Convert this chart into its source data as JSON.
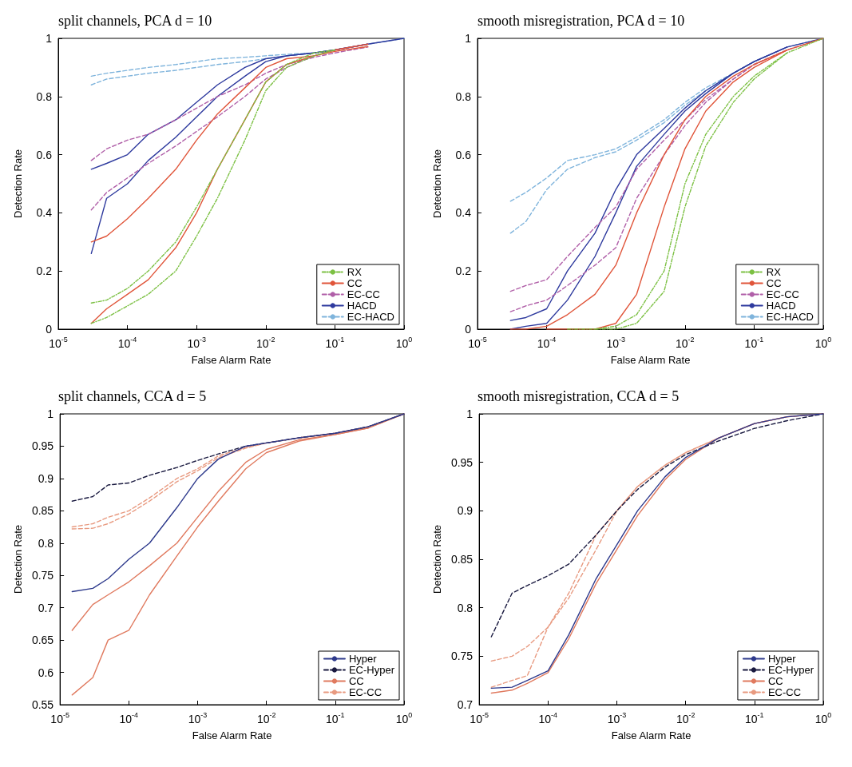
{
  "chart_data": [
    {
      "type": "line",
      "title": "split channels, PCA d = 10",
      "xlabel": "False Alarm Rate",
      "ylabel": "Detection Rate",
      "log": "x",
      "marker": "none",
      "legend": "bottom right",
      "x": [
        3e-05,
        5e-05,
        0.0001,
        0.0002,
        0.0005,
        0.001,
        0.002,
        0.005,
        0.01,
        0.02,
        0.05,
        0.1,
        0.3,
        1
      ],
      "xlim": [
        1e-05,
        1
      ],
      "xticks": [
        {
          "value": 1e-05,
          "label": "10$^{-5}$"
        },
        {
          "value": 0.0001,
          "label": "10$^{-4}$"
        },
        {
          "value": 0.001,
          "label": "10$^{-3}$"
        },
        {
          "value": 0.01,
          "label": "10$^{-2}$"
        },
        {
          "value": 0.1,
          "label": "10$^{-1}$"
        },
        {
          "value": 1,
          "label": "10$^{0}$"
        }
      ],
      "ylim": [
        0,
        1
      ],
      "yticks": [
        0,
        0.2,
        0.4,
        0.6,
        0.8,
        1
      ],
      "series": [
        {
          "name": "RX",
          "color": "#7cc043",
          "line_style": "dashdot",
          "values": [
            0.09,
            0.1,
            0.14,
            0.2,
            0.3,
            0.42,
            0.55,
            0.72,
            0.85,
            0.91,
            0.95,
            0.96,
            null,
            null
          ]
        },
        {
          "color": "#7cc043",
          "line_style": "dashdot",
          "values": [
            0.02,
            0.04,
            0.08,
            0.12,
            0.2,
            0.32,
            0.45,
            0.65,
            0.82,
            0.9,
            0.94,
            0.96,
            null,
            null
          ]
        },
        {
          "name": "CC",
          "color": "#e0553a",
          "line_style": "solid",
          "values": [
            0.3,
            0.32,
            0.38,
            0.45,
            0.55,
            0.65,
            0.74,
            0.83,
            0.9,
            0.93,
            0.94,
            0.955,
            0.972,
            null
          ]
        },
        {
          "color": "#e0553a",
          "line_style": "solid",
          "values": [
            0.02,
            0.07,
            0.12,
            0.17,
            0.28,
            0.4,
            0.55,
            0.72,
            0.85,
            0.91,
            0.94,
            0.96,
            0.98,
            null
          ]
        },
        {
          "name": "EC-CC",
          "color": "#b05fa8",
          "line_style": "dashed",
          "values": [
            0.58,
            0.62,
            0.65,
            0.67,
            0.72,
            0.76,
            0.8,
            0.84,
            0.88,
            0.91,
            0.935,
            0.95,
            0.97,
            null
          ]
        },
        {
          "color": "#b05fa8",
          "line_style": "dashed",
          "values": [
            0.41,
            0.47,
            0.52,
            0.57,
            0.63,
            0.68,
            0.73,
            0.8,
            0.86,
            0.9,
            0.94,
            0.96,
            0.98,
            null
          ]
        },
        {
          "name": "HACD",
          "color": "#2e3a9e",
          "line_style": "solid",
          "values": [
            0.55,
            0.57,
            0.6,
            0.67,
            0.72,
            0.78,
            0.84,
            0.9,
            0.93,
            0.94,
            0.95,
            0.96,
            0.98,
            1
          ]
        },
        {
          "color": "#2e3a9e",
          "line_style": "solid",
          "values": [
            0.26,
            0.45,
            0.5,
            0.58,
            0.66,
            0.73,
            0.8,
            0.87,
            0.92,
            0.94,
            0.95,
            0.96,
            0.98,
            null
          ]
        },
        {
          "name": "EC-HACD",
          "color": "#7fb4dc",
          "line_style": "dashed",
          "values": [
            0.87,
            0.88,
            0.89,
            0.9,
            0.91,
            0.92,
            0.93,
            0.935,
            0.94,
            0.945,
            0.95,
            0.96,
            0.98,
            1
          ]
        },
        {
          "color": "#7fb4dc",
          "line_style": "dashed",
          "values": [
            0.84,
            0.86,
            0.87,
            0.88,
            0.89,
            0.9,
            0.91,
            0.92,
            0.93,
            0.94,
            0.95,
            0.96,
            0.98,
            null
          ]
        }
      ]
    },
    {
      "type": "line",
      "title": "smooth misregistration, PCA d = 10",
      "xlabel": "False Alarm Rate",
      "ylabel": "Detection Rate",
      "log": "x",
      "marker": "none",
      "legend": "bottom right",
      "x": [
        3e-05,
        5e-05,
        0.0001,
        0.0002,
        0.0005,
        0.001,
        0.002,
        0.005,
        0.01,
        0.02,
        0.05,
        0.1,
        0.3,
        1
      ],
      "xlim": [
        1e-05,
        1
      ],
      "xticks": [
        {
          "value": 1e-05,
          "label": "10$^{-5}$"
        },
        {
          "value": 0.0001,
          "label": "10$^{-4}$"
        },
        {
          "value": 0.001,
          "label": "10$^{-3}$"
        },
        {
          "value": 0.01,
          "label": "10$^{-2}$"
        },
        {
          "value": 0.1,
          "label": "10$^{-1}$"
        },
        {
          "value": 1,
          "label": "10$^{0}$"
        }
      ],
      "ylim": [
        0,
        1
      ],
      "yticks": [
        0,
        0.2,
        0.4,
        0.6,
        0.8,
        1
      ],
      "series": [
        {
          "name": "RX",
          "color": "#7cc043",
          "line_style": "dashdot",
          "values": [
            null,
            null,
            null,
            0,
            0,
            0.01,
            0.05,
            0.2,
            0.5,
            0.67,
            0.8,
            0.87,
            0.95,
            1
          ]
        },
        {
          "color": "#7cc043",
          "line_style": "dashdot",
          "values": [
            null,
            null,
            null,
            null,
            0,
            0,
            0.02,
            0.13,
            0.42,
            0.63,
            0.78,
            0.86,
            0.95,
            null
          ]
        },
        {
          "name": "CC",
          "color": "#e0553a",
          "line_style": "solid",
          "values": [
            0,
            0,
            0.01,
            0.05,
            0.12,
            0.22,
            0.4,
            0.6,
            0.72,
            0.8,
            0.87,
            0.91,
            0.96,
            1
          ]
        },
        {
          "color": "#e0553a",
          "line_style": "solid",
          "values": [
            null,
            null,
            0,
            0,
            0,
            0.02,
            0.12,
            0.42,
            0.62,
            0.75,
            0.85,
            0.9,
            0.96,
            null
          ]
        },
        {
          "name": "EC-CC",
          "color": "#b05fa8",
          "line_style": "dashed",
          "values": [
            0.13,
            0.15,
            0.17,
            0.25,
            0.35,
            0.42,
            0.55,
            0.65,
            0.72,
            0.79,
            0.86,
            0.91,
            0.96,
            1
          ]
        },
        {
          "color": "#b05fa8",
          "line_style": "dashed",
          "values": [
            0.06,
            0.08,
            0.1,
            0.15,
            0.22,
            0.28,
            0.45,
            0.6,
            0.7,
            0.78,
            0.86,
            0.91,
            0.96,
            null
          ]
        },
        {
          "name": "HACD",
          "color": "#2e3a9e",
          "line_style": "solid",
          "values": [
            0.03,
            0.04,
            0.07,
            0.2,
            0.33,
            0.48,
            0.6,
            0.69,
            0.76,
            0.82,
            0.88,
            0.92,
            0.97,
            1
          ]
        },
        {
          "color": "#2e3a9e",
          "line_style": "solid",
          "values": [
            0,
            0.01,
            0.02,
            0.1,
            0.25,
            0.4,
            0.56,
            0.67,
            0.75,
            0.81,
            0.88,
            0.92,
            0.97,
            null
          ]
        },
        {
          "name": "EC-HACD",
          "color": "#7fb4dc",
          "line_style": "dashed",
          "values": [
            0.44,
            0.47,
            0.52,
            0.58,
            0.6,
            0.62,
            0.66,
            0.72,
            0.78,
            0.83,
            0.88,
            0.92,
            0.97,
            1
          ]
        },
        {
          "color": "#7fb4dc",
          "line_style": "dashed",
          "values": [
            0.33,
            0.37,
            0.48,
            0.55,
            0.59,
            0.61,
            0.65,
            0.71,
            0.77,
            0.82,
            0.88,
            0.92,
            0.97,
            null
          ]
        }
      ]
    },
    {
      "type": "line",
      "title": "split channels, CCA d = 5",
      "xlabel": "False Alarm Rate",
      "ylabel": "Detection Rate",
      "log": "x",
      "marker": "none",
      "legend": "bottom right",
      "x": [
        1.5e-05,
        3e-05,
        5e-05,
        0.0001,
        0.0002,
        0.0005,
        0.001,
        0.002,
        0.005,
        0.01,
        0.03,
        0.1,
        0.3,
        1
      ],
      "xlim": [
        1e-05,
        1
      ],
      "xticks": [
        {
          "value": 1e-05,
          "label": "10$^{-5}$"
        },
        {
          "value": 0.0001,
          "label": "10$^{-4}$"
        },
        {
          "value": 0.001,
          "label": "10$^{-3}$"
        },
        {
          "value": 0.01,
          "label": "10$^{-2}$"
        },
        {
          "value": 0.1,
          "label": "10$^{-1}$"
        },
        {
          "value": 1,
          "label": "10$^{0}$"
        }
      ],
      "ylim": [
        0.55,
        1
      ],
      "yticks": [
        0.55,
        0.6,
        0.65,
        0.7,
        0.75,
        0.8,
        0.85,
        0.9,
        0.95,
        1
      ],
      "series": [
        {
          "name": "Hyper",
          "color": "#2e3a8c",
          "line_style": "solid",
          "values": [
            0.725,
            0.73,
            0.745,
            0.775,
            0.8,
            0.855,
            0.9,
            0.93,
            0.95,
            0.955,
            0.963,
            0.97,
            0.98,
            1
          ]
        },
        {
          "name": "EC-Hyper",
          "color": "#1a1a40",
          "line_style": "dashed",
          "values": [
            0.865,
            0.872,
            0.89,
            0.893,
            0.905,
            0.917,
            0.928,
            0.938,
            0.95,
            0.955,
            0.963,
            0.97,
            0.98,
            1
          ]
        },
        {
          "name": "CC",
          "color": "#e07a5f",
          "line_style": "solid",
          "values": [
            0.665,
            0.705,
            0.72,
            0.74,
            0.765,
            0.8,
            0.84,
            0.88,
            0.925,
            0.945,
            0.96,
            0.968,
            0.978,
            1
          ]
        },
        {
          "color": "#e07a5f",
          "line_style": "solid",
          "values": [
            0.565,
            0.592,
            0.65,
            0.665,
            0.72,
            0.78,
            0.825,
            0.865,
            0.915,
            0.94,
            0.958,
            0.968,
            0.978,
            null
          ]
        },
        {
          "name": "EC-CC",
          "color": "#e89a80",
          "line_style": "dashed",
          "values": [
            0.825,
            0.83,
            0.84,
            0.85,
            0.87,
            0.9,
            0.915,
            0.935,
            0.948,
            0.955,
            0.963,
            0.97,
            0.98,
            1
          ]
        },
        {
          "color": "#e89a80",
          "line_style": "dashed",
          "values": [
            0.822,
            0.823,
            0.83,
            0.845,
            0.865,
            0.895,
            0.912,
            0.932,
            0.947,
            0.955,
            0.963,
            0.97,
            0.98,
            null
          ]
        }
      ]
    },
    {
      "type": "line",
      "title": "smooth misregistration, CCA d = 5",
      "xlabel": "False Alarm Rate",
      "ylabel": "Detection Rate",
      "log": "x",
      "marker": "none",
      "legend": "bottom right",
      "x": [
        1.5e-05,
        3e-05,
        5e-05,
        0.0001,
        0.0002,
        0.0005,
        0.001,
        0.002,
        0.005,
        0.01,
        0.03,
        0.1,
        0.3,
        1
      ],
      "xlim": [
        1e-05,
        1
      ],
      "xticks": [
        {
          "value": 1e-05,
          "label": "10$^{-5}$"
        },
        {
          "value": 0.0001,
          "label": "10$^{-4}$"
        },
        {
          "value": 0.001,
          "label": "10$^{-3}$"
        },
        {
          "value": 0.01,
          "label": "10$^{-2}$"
        },
        {
          "value": 0.1,
          "label": "10$^{-1}$"
        },
        {
          "value": 1,
          "label": "10$^{0}$"
        }
      ],
      "ylim": [
        0.7,
        1
      ],
      "yticks": [
        0.7,
        0.75,
        0.8,
        0.85,
        0.9,
        0.95,
        1
      ],
      "series": [
        {
          "name": "Hyper",
          "color": "#2e3a8c",
          "line_style": "solid",
          "values": [
            0.717,
            0.718,
            0.725,
            0.735,
            0.772,
            0.83,
            0.865,
            0.9,
            0.935,
            0.955,
            0.975,
            0.99,
            0.997,
            1
          ]
        },
        {
          "name": "EC-Hyper",
          "color": "#1a1a40",
          "line_style": "dashed",
          "values": [
            0.77,
            0.815,
            0.823,
            0.833,
            0.845,
            0.875,
            0.9,
            0.922,
            0.945,
            0.958,
            0.972,
            0.985,
            0.993,
            1
          ]
        },
        {
          "name": "CC",
          "color": "#e07a5f",
          "line_style": "solid",
          "values": [
            0.712,
            0.715,
            0.722,
            0.733,
            0.768,
            0.825,
            0.86,
            0.895,
            0.932,
            0.953,
            0.975,
            0.99,
            0.997,
            1
          ]
        },
        {
          "name": "EC-CC",
          "color": "#e89a80",
          "line_style": "dashed",
          "values": [
            0.745,
            0.75,
            0.76,
            0.78,
            0.81,
            0.86,
            0.9,
            0.925,
            0.947,
            0.96,
            0.975,
            0.99,
            0.997,
            1
          ]
        },
        {
          "color": "#e89a80",
          "line_style": "dashed",
          "values": [
            0.718,
            0.725,
            0.73,
            0.78,
            0.815,
            0.875,
            0.9,
            0.925,
            0.947,
            0.96,
            0.975,
            0.99,
            0.997,
            null
          ]
        }
      ]
    }
  ]
}
